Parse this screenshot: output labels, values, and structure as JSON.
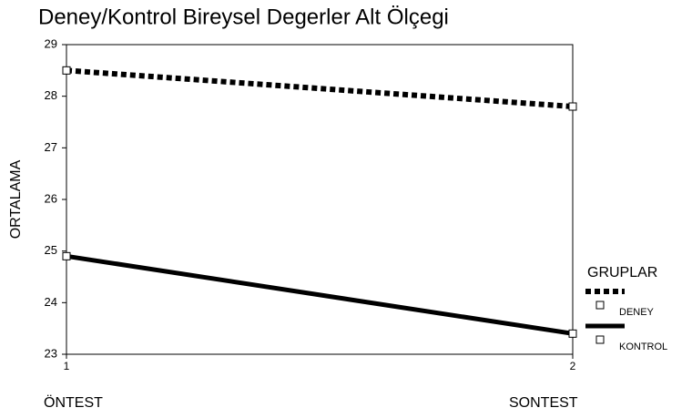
{
  "chart_data": {
    "type": "line",
    "title": "Deney/Kontrol Bireysel Degerler Alt Ölçegi",
    "y_label": "ORTALAMA",
    "legend_title": "GRUPLAR",
    "x": [
      1,
      2
    ],
    "x_labels": [
      "ÖNTEST",
      "SONTEST"
    ],
    "xlim": [
      1,
      2
    ],
    "xticks": [
      1,
      2
    ],
    "ylim": [
      23,
      29
    ],
    "yticks": [
      23,
      24,
      25,
      26,
      27,
      28,
      29
    ],
    "series": [
      {
        "name": "DENEY",
        "color": "#000000",
        "style": "dotted",
        "values": [
          28.5,
          27.8
        ]
      },
      {
        "name": "KONTROL",
        "color": "#000000",
        "style": "solid",
        "values": [
          24.9,
          23.4
        ]
      }
    ]
  }
}
